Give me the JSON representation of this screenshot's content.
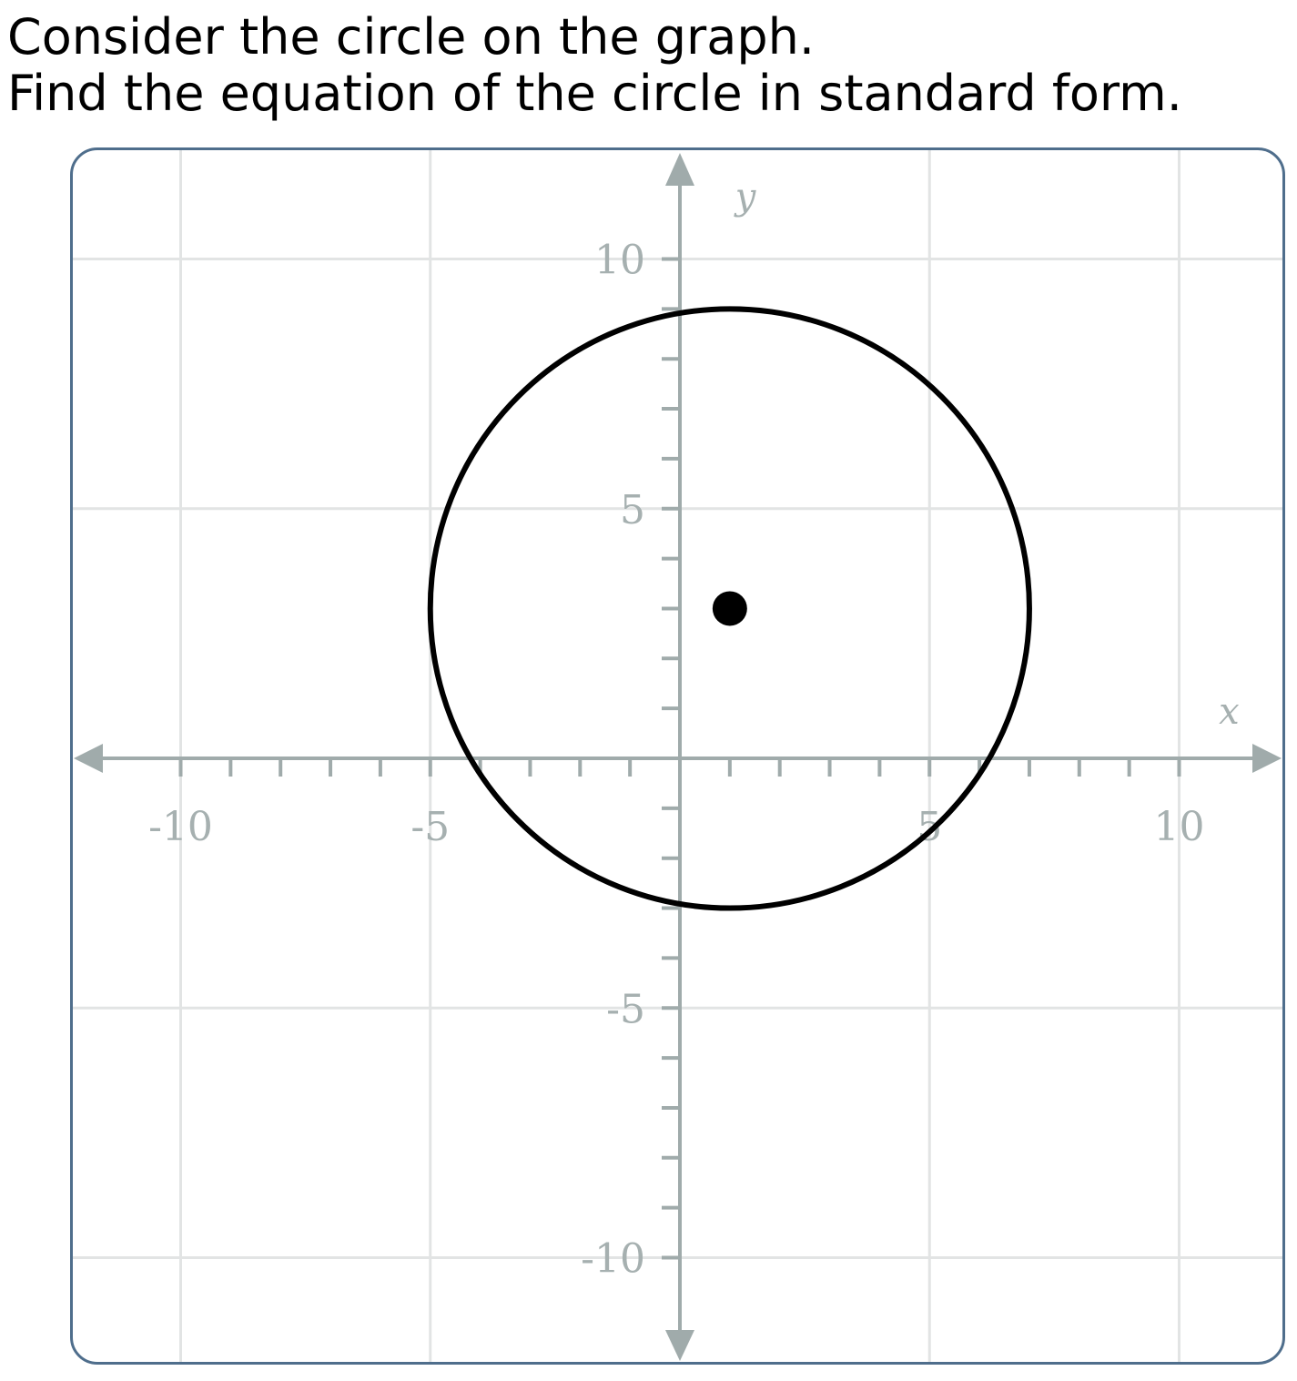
{
  "question": {
    "line1": "Consider the circle on the graph.",
    "line2": "Find the equation of the circle in standard form."
  },
  "colors": {
    "grid": "#e2e4e4",
    "axis": "#a0abab",
    "tick_label": "#a6b0b0",
    "curve": "#000000",
    "frame_border": "#4f6e8c"
  },
  "chart_data": {
    "type": "scatter",
    "title": "",
    "xlabel": "x",
    "ylabel": "y",
    "xlim": [
      -10,
      10
    ],
    "ylim": [
      -10,
      10
    ],
    "grid": true,
    "grid_step": 5,
    "minor_tick_step": 1,
    "x_tick_labels": [
      {
        "value": -10,
        "label": "-10"
      },
      {
        "value": -5,
        "label": "-5"
      },
      {
        "value": 5,
        "label": "5"
      },
      {
        "value": 10,
        "label": "10"
      }
    ],
    "y_tick_labels": [
      {
        "value": 10,
        "label": "10"
      },
      {
        "value": 5,
        "label": "5"
      },
      {
        "value": -5,
        "label": "-5"
      },
      {
        "value": -10,
        "label": "-10"
      }
    ],
    "circle": {
      "center_x": 1,
      "center_y": 3,
      "radius": 6
    },
    "points": [
      {
        "x": 1,
        "y": 3
      }
    ]
  }
}
